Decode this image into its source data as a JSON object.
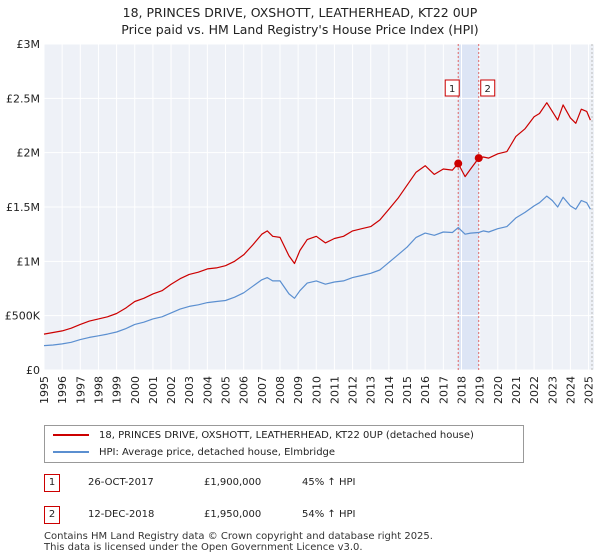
{
  "chart_data": {
    "type": "line",
    "title": "18, PRINCES DRIVE, OXSHOTT, LEATHERHEAD, KT22 0UP",
    "subtitle": "Price paid vs. HM Land Registry's House Price Index (HPI)",
    "xlabel": "",
    "ylabel": "",
    "xlim": [
      1995,
      2025.3
    ],
    "ylim": [
      0,
      3000000
    ],
    "y_ticks": [
      {
        "value": 0,
        "label": "£0"
      },
      {
        "value": 500000,
        "label": "£500K"
      },
      {
        "value": 1000000,
        "label": "£1M"
      },
      {
        "value": 1500000,
        "label": "£1.5M"
      },
      {
        "value": 2000000,
        "label": "£2M"
      },
      {
        "value": 2500000,
        "label": "£2.5M"
      },
      {
        "value": 3000000,
        "label": "£3M"
      }
    ],
    "x_ticks": [
      "1995",
      "1996",
      "1997",
      "1998",
      "1999",
      "2000",
      "2001",
      "2002",
      "2003",
      "2004",
      "2005",
      "2006",
      "2007",
      "2008",
      "2009",
      "2010",
      "2011",
      "2012",
      "2013",
      "2014",
      "2015",
      "2016",
      "2017",
      "2018",
      "2019",
      "2020",
      "2021",
      "2022",
      "2023",
      "2024",
      "2025"
    ],
    "grid": true,
    "series": [
      {
        "name": "18, PRINCES DRIVE, OXSHOTT, LEATHERHEAD, KT22 0UP (detached house)",
        "color": "#cc0000",
        "x": [
          1995,
          1995.5,
          1996,
          1996.5,
          1997,
          1997.5,
          1998,
          1998.5,
          1999,
          1999.5,
          2000,
          2000.5,
          2001,
          2001.5,
          2002,
          2002.5,
          2003,
          2003.5,
          2004,
          2004.5,
          2005,
          2005.5,
          2006,
          2006.5,
          2007,
          2007.3,
          2007.6,
          2008,
          2008.5,
          2008.8,
          2009.1,
          2009.5,
          2010,
          2010.5,
          2011,
          2011.5,
          2012,
          2012.5,
          2013,
          2013.5,
          2014,
          2014.5,
          2015,
          2015.5,
          2016,
          2016.5,
          2017,
          2017.5,
          2017.82,
          2018.2,
          2018.5,
          2018.95,
          2019.2,
          2019.5,
          2020,
          2020.5,
          2021,
          2021.5,
          2022,
          2022.3,
          2022.7,
          2023,
          2023.3,
          2023.6,
          2024,
          2024.3,
          2024.6,
          2024.9,
          2025.1
        ],
        "values": [
          330000,
          345000,
          360000,
          385000,
          420000,
          450000,
          470000,
          490000,
          520000,
          570000,
          630000,
          660000,
          700000,
          730000,
          790000,
          840000,
          880000,
          900000,
          930000,
          940000,
          960000,
          1000000,
          1060000,
          1150000,
          1250000,
          1280000,
          1230000,
          1220000,
          1050000,
          980000,
          1100000,
          1200000,
          1230000,
          1170000,
          1210000,
          1230000,
          1280000,
          1300000,
          1320000,
          1380000,
          1480000,
          1580000,
          1700000,
          1820000,
          1880000,
          1800000,
          1850000,
          1840000,
          1900000,
          1780000,
          1850000,
          1950000,
          1960000,
          1950000,
          1990000,
          2010000,
          2150000,
          2220000,
          2330000,
          2360000,
          2460000,
          2380000,
          2300000,
          2440000,
          2320000,
          2270000,
          2400000,
          2380000,
          2300000
        ]
      },
      {
        "name": "HPI: Average price, detached house, Elmbridge",
        "color": "#5b8fd0",
        "x": [
          1995,
          1995.5,
          1996,
          1996.5,
          1997,
          1997.5,
          1998,
          1998.5,
          1999,
          1999.5,
          2000,
          2000.5,
          2001,
          2001.5,
          2002,
          2002.5,
          2003,
          2003.5,
          2004,
          2004.5,
          2005,
          2005.5,
          2006,
          2006.5,
          2007,
          2007.3,
          2007.6,
          2008,
          2008.5,
          2008.8,
          2009.1,
          2009.5,
          2010,
          2010.5,
          2011,
          2011.5,
          2012,
          2012.5,
          2013,
          2013.5,
          2014,
          2014.5,
          2015,
          2015.5,
          2016,
          2016.5,
          2017,
          2017.5,
          2017.82,
          2018.2,
          2018.5,
          2018.95,
          2019.2,
          2019.5,
          2020,
          2020.5,
          2021,
          2021.5,
          2022,
          2022.3,
          2022.7,
          2023,
          2023.3,
          2023.6,
          2024,
          2024.3,
          2024.6,
          2024.9,
          2025.1
        ],
        "values": [
          225000,
          230000,
          240000,
          255000,
          280000,
          300000,
          315000,
          330000,
          350000,
          380000,
          420000,
          440000,
          470000,
          490000,
          525000,
          560000,
          585000,
          600000,
          620000,
          630000,
          640000,
          670000,
          710000,
          770000,
          830000,
          850000,
          820000,
          820000,
          700000,
          660000,
          730000,
          800000,
          820000,
          790000,
          810000,
          820000,
          850000,
          870000,
          890000,
          920000,
          990000,
          1060000,
          1130000,
          1220000,
          1260000,
          1240000,
          1270000,
          1265000,
          1310000,
          1250000,
          1260000,
          1265000,
          1280000,
          1270000,
          1300000,
          1320000,
          1400000,
          1450000,
          1510000,
          1540000,
          1600000,
          1560000,
          1500000,
          1590000,
          1510000,
          1480000,
          1560000,
          1540000,
          1480000
        ]
      }
    ],
    "markers": [
      {
        "label": "1",
        "x": 2017.82,
        "value": 1900000
      },
      {
        "label": "2",
        "x": 2018.95,
        "value": 1950000
      }
    ]
  },
  "legend": {
    "items": [
      {
        "label": "18, PRINCES DRIVE, OXSHOTT, LEATHERHEAD, KT22 0UP (detached house)",
        "color": "#cc0000"
      },
      {
        "label": "HPI: Average price, detached house, Elmbridge",
        "color": "#5b8fd0"
      }
    ]
  },
  "transactions": [
    {
      "badge": "1",
      "date": "26-OCT-2017",
      "price": "£1,900,000",
      "hpi": "45% ↑ HPI"
    },
    {
      "badge": "2",
      "date": "12-DEC-2018",
      "price": "£1,950,000",
      "hpi": "54% ↑ HPI"
    }
  ],
  "footer": {
    "line1": "Contains HM Land Registry data © Crown copyright and database right 2025.",
    "line2": "This data is licensed under the Open Government Licence v3.0."
  }
}
